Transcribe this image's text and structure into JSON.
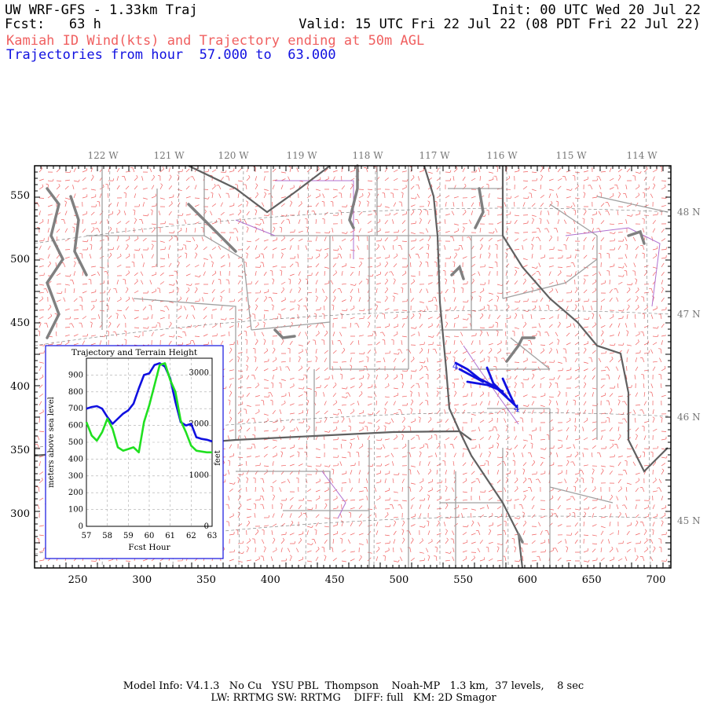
{
  "header": {
    "title": "UW WRF-GFS - 1.33km Traj",
    "init": "Init: 00 UTC Wed 20 Jul 22",
    "fcst": "Fcst:   63 h",
    "valid": "Valid: 15 UTC Fri 22 Jul 22 (08 PDT Fri 22 Jul 22)",
    "field": "Kamiah ID Wind(kts) and Trajectory ending at 50m AGL",
    "traj_range": "Trajectories from hour  57.000 to  63.000"
  },
  "map": {
    "lon_labels": [
      "122 W",
      "121 W",
      "120 W",
      "119 W",
      "118 W",
      "117 W",
      "116 W",
      "115 W",
      "114 W"
    ],
    "lat_labels": [
      "48 N",
      "47 N",
      "46 N",
      "45 N"
    ],
    "x_ticks": [
      "250",
      "300",
      "350",
      "400",
      "450",
      "500",
      "550",
      "600",
      "650",
      "700"
    ],
    "y_ticks": [
      "550",
      "500",
      "450",
      "400",
      "350",
      "300"
    ],
    "traj_marker_start": "4",
    "traj_marker_end": "4",
    "colors": {
      "wind_barbs": "#f06060",
      "state_border": "#606060",
      "county": "#a0a0a0",
      "trajectory": "#1010e0",
      "water": "#808080"
    }
  },
  "inset": {
    "title": "Trajectory and Terrain Height",
    "ylabel_left": "meters above sea level",
    "ylabel_right": "feet",
    "xlabel": "Fcst Hour",
    "x_ticks": [
      "57",
      "58",
      "59",
      "60",
      "61",
      "62",
      "63"
    ],
    "y_left_ticks": [
      "0",
      "100",
      "200",
      "300",
      "400",
      "500",
      "600",
      "700",
      "800",
      "900"
    ],
    "y_right_ticks": [
      "0",
      "1000",
      "2000",
      "3000"
    ]
  },
  "chart_data": {
    "type": "line",
    "title": "Trajectory and Terrain Height",
    "xlabel": "Fcst Hour",
    "ylabel": "meters above sea level",
    "xlim": [
      57,
      63
    ],
    "ylim": [
      0,
      1000
    ],
    "series": [
      {
        "name": "",
        "color": "#1010e0",
        "x": [
          57,
          57.25,
          57.5,
          57.75,
          58,
          58.25,
          58.5,
          58.75,
          59,
          59.25,
          59.5,
          59.75,
          60,
          60.25,
          60.5,
          60.75,
          61,
          61.25,
          61.5,
          61.75,
          62,
          62.25,
          62.5,
          62.75,
          63
        ],
        "y": [
          700,
          710,
          715,
          700,
          650,
          610,
          640,
          670,
          690,
          730,
          820,
          900,
          910,
          960,
          970,
          950,
          880,
          740,
          620,
          600,
          610,
          530,
          520,
          515,
          505
        ]
      },
      {
        "name": "",
        "color": "#20e020",
        "x": [
          57,
          57.25,
          57.5,
          57.75,
          58,
          58.25,
          58.5,
          58.75,
          59,
          59.25,
          59.5,
          59.75,
          60,
          60.25,
          60.5,
          60.75,
          61,
          61.25,
          61.5,
          61.75,
          62,
          62.25,
          62.5,
          62.75,
          63
        ],
        "y": [
          620,
          540,
          510,
          560,
          640,
          580,
          470,
          450,
          460,
          470,
          440,
          620,
          720,
          840,
          960,
          970,
          870,
          800,
          630,
          560,
          480,
          450,
          445,
          440,
          440
        ]
      }
    ]
  },
  "footer": {
    "line1": "Model Info: V4.1.3   No Cu   YSU PBL  Thompson    Noah-MP   1.3 km,  37 levels,    8 sec",
    "line2": "LW: RRTMG SW: RRTMG    DIFF: full   KM: 2D Smagor"
  }
}
